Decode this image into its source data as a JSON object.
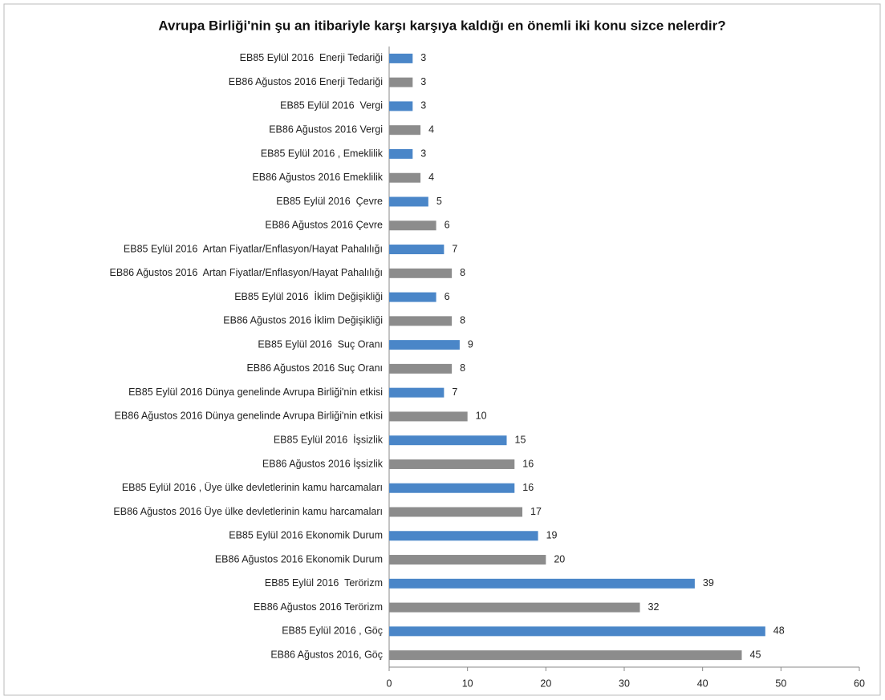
{
  "chart_data": {
    "type": "bar",
    "orientation": "horizontal",
    "title": "Avrupa Birliği'nin şu an itibariyle karşı karşıya kaldığı en önemli iki konu sizce nelerdir?",
    "categories": [
      "EB85 Eylül 2016  Enerji Tedariği",
      "EB86 Ağustos 2016 Enerji Tedariği",
      "EB85 Eylül 2016  Vergi",
      "EB86 Ağustos 2016 Vergi",
      "EB85 Eylül 2016 , Emeklilik",
      "EB86 Ağustos 2016 Emeklilik",
      "EB85 Eylül 2016  Çevre",
      "EB86 Ağustos 2016 Çevre",
      "EB85 Eylül 2016  Artan Fiyatlar/Enflasyon/Hayat Pahalılığı",
      "EB86 Ağustos 2016  Artan Fiyatlar/Enflasyon/Hayat Pahalılığı",
      "EB85 Eylül 2016  İklim Değişikliği",
      "EB86 Ağustos 2016 İklim Değişikliği",
      "EB85 Eylül 2016  Suç Oranı",
      "EB86 Ağustos 2016 Suç Oranı",
      "EB85 Eylül 2016 Dünya genelinde Avrupa Birliği'nin etkisi",
      "EB86 Ağustos 2016 Dünya genelinde Avrupa Birliği'nin etkisi",
      "EB85 Eylül 2016  İşsizlik",
      "EB86 Ağustos 2016 İşsizlik",
      "EB85 Eylül 2016 , Üye ülke devletlerinin kamu harcamaları",
      "EB86 Ağustos 2016 Üye ülke devletlerinin kamu harcamaları",
      "EB85 Eylül 2016 Ekonomik Durum",
      "EB86 Ağustos 2016 Ekonomik Durum",
      "EB85 Eylül 2016  Terörizm",
      "EB86 Ağustos 2016 Terörizm",
      "EB85 Eylül 2016 , Göç",
      "EB86 Ağustos 2016, Göç"
    ],
    "values": [
      3,
      3,
      3,
      4,
      3,
      4,
      5,
      6,
      7,
      8,
      6,
      8,
      9,
      8,
      7,
      10,
      15,
      16,
      16,
      17,
      19,
      20,
      39,
      32,
      48,
      45
    ],
    "colors": [
      "#4a86c8",
      "#8c8c8c",
      "#4a86c8",
      "#8c8c8c",
      "#4a86c8",
      "#8c8c8c",
      "#4a86c8",
      "#8c8c8c",
      "#4a86c8",
      "#8c8c8c",
      "#4a86c8",
      "#8c8c8c",
      "#4a86c8",
      "#8c8c8c",
      "#4a86c8",
      "#8c8c8c",
      "#4a86c8",
      "#8c8c8c",
      "#4a86c8",
      "#8c8c8c",
      "#4a86c8",
      "#8c8c8c",
      "#4a86c8",
      "#8c8c8c",
      "#4a86c8",
      "#8c8c8c"
    ],
    "xlim": [
      0,
      60
    ],
    "xticks": [
      0,
      10,
      20,
      30,
      40,
      50,
      60
    ],
    "grid": false
  }
}
